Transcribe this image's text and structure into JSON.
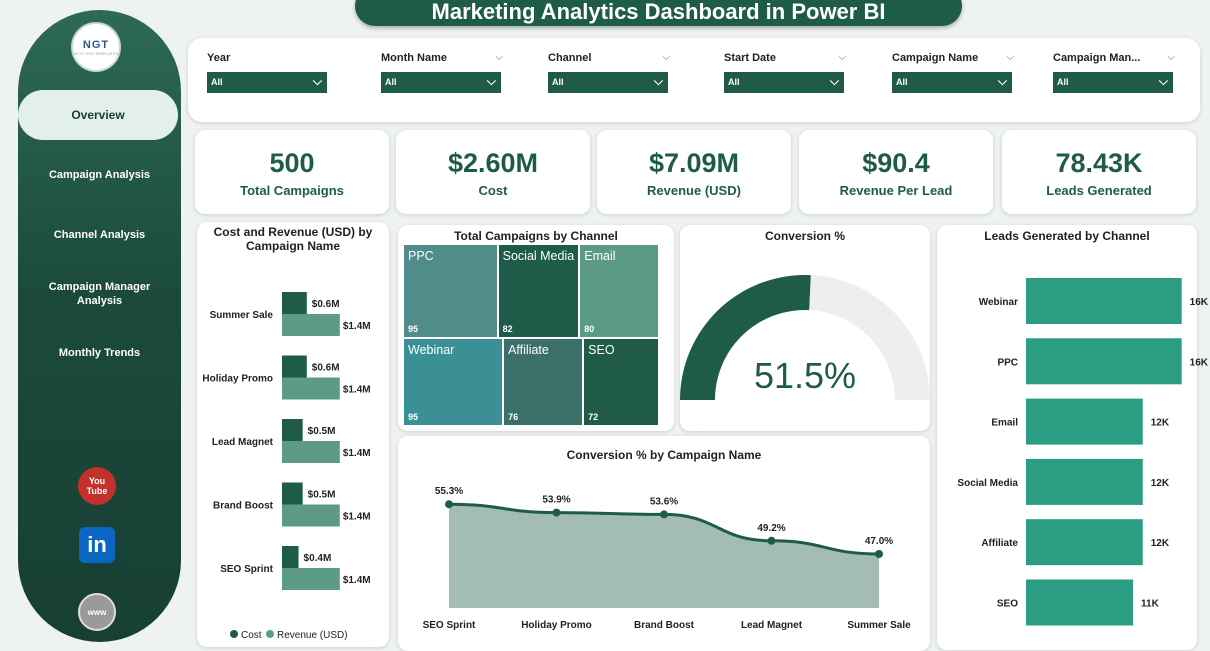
{
  "title": "Marketing Analytics Dashboard in Power BI",
  "logo": {
    "main": "NGT",
    "sub": "NEXT GEN TEMPLATES"
  },
  "nav": [
    {
      "label": "Overview"
    },
    {
      "label": "Campaign Analysis"
    },
    {
      "label": "Channel Analysis"
    },
    {
      "label": "Campaign Manager Analysis"
    },
    {
      "label": "Monthly Trends"
    }
  ],
  "social": {
    "youtube_top": "You",
    "youtube_bottom": "Tube",
    "linkedin": "in",
    "www": "www"
  },
  "filters": [
    {
      "label": "Year",
      "value": "All"
    },
    {
      "label": "Month Name",
      "value": "All"
    },
    {
      "label": "Channel",
      "value": "All"
    },
    {
      "label": "Start Date",
      "value": "All"
    },
    {
      "label": "Campaign Name",
      "value": "All"
    },
    {
      "label": "Campaign Man...",
      "value": "All"
    }
  ],
  "kpis": [
    {
      "value": "500",
      "label": "Total Campaigns"
    },
    {
      "value": "$2.60M",
      "label": "Cost"
    },
    {
      "value": "$7.09M",
      "label": "Revenue (USD)"
    },
    {
      "value": "$90.4",
      "label": "Revenue Per Lead"
    },
    {
      "value": "78.43K",
      "label": "Leads Generated"
    }
  ],
  "colors": {
    "primary": "#1e5c49",
    "secondary": "#5e9b86",
    "teal": "#2a9d82"
  },
  "charts": {
    "cost_revenue": {
      "title": "Cost and Revenue (USD) by Campaign Name",
      "legend": [
        "Cost",
        "Revenue (USD)"
      ]
    },
    "treemap": {
      "title": "Total Campaigns by Channel"
    },
    "gauge": {
      "title": "Conversion %",
      "value_label": "51.5%"
    },
    "line": {
      "title": "Conversion % by Campaign Name"
    },
    "leads": {
      "title": "Leads Generated by Channel"
    }
  },
  "chart_data": [
    {
      "type": "bar",
      "title": "Cost and Revenue (USD) by Campaign Name",
      "categories": [
        "Summer Sale",
        "Holiday Promo",
        "Lead Magnet",
        "Brand Boost",
        "SEO Sprint"
      ],
      "series": [
        {
          "name": "Cost",
          "values": [
            0.6,
            0.6,
            0.5,
            0.5,
            0.4
          ],
          "labels": [
            "$0.6M",
            "$0.6M",
            "$0.5M",
            "$0.5M",
            "$0.4M"
          ]
        },
        {
          "name": "Revenue (USD)",
          "values": [
            1.4,
            1.4,
            1.4,
            1.4,
            1.4
          ],
          "labels": [
            "$1.4M",
            "$1.4M",
            "$1.4M",
            "$1.4M",
            "$1.4M"
          ]
        }
      ],
      "xlim": [
        0,
        2.3
      ]
    },
    {
      "type": "heatmap",
      "title": "Total Campaigns by Channel",
      "categories": [
        "PPC",
        "Social Media",
        "Email",
        "Webinar",
        "Affiliate",
        "SEO"
      ],
      "values": [
        95,
        82,
        80,
        95,
        76,
        72
      ]
    },
    {
      "type": "pie",
      "title": "Conversion %",
      "values": [
        51.5
      ],
      "label": "51.5%",
      "max": 100
    },
    {
      "type": "area",
      "title": "Conversion % by Campaign Name",
      "categories": [
        "SEO Sprint",
        "Holiday Promo",
        "Brand Boost",
        "Lead Magnet",
        "Summer Sale"
      ],
      "values": [
        55.3,
        53.9,
        53.6,
        49.2,
        47.0
      ],
      "labels": [
        "55.3%",
        "53.9%",
        "53.6%",
        "49.2%",
        "47.0%"
      ],
      "ylim": [
        38,
        60
      ]
    },
    {
      "type": "bar",
      "title": "Leads Generated by Channel",
      "categories": [
        "Webinar",
        "PPC",
        "Email",
        "Social Media",
        "Affiliate",
        "SEO"
      ],
      "values": [
        16,
        16,
        12,
        12,
        12,
        11
      ],
      "labels": [
        "16K",
        "16K",
        "12K",
        "12K",
        "12K",
        "11K"
      ],
      "xlim": [
        0,
        18.5
      ]
    }
  ]
}
